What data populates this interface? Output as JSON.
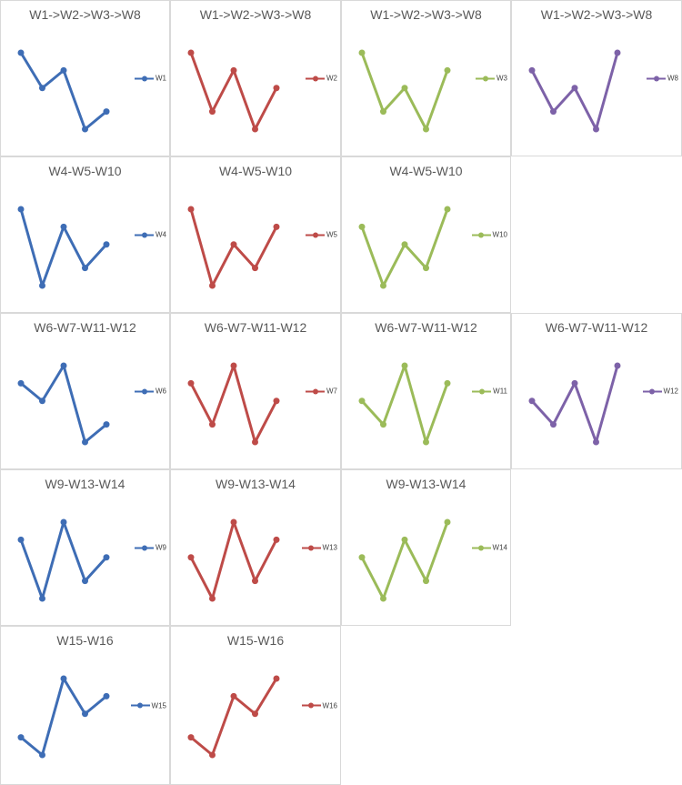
{
  "palette": {
    "blue": "#3e6db5",
    "red": "#be4b48",
    "green": "#9bbb59",
    "purple": "#7d62a8"
  },
  "style": {
    "title_color": "#595959",
    "legend_text_color": "#404040",
    "cell_border_color": "#d9d9d9",
    "background": "#ffffff"
  },
  "grid": {
    "columns": 4,
    "rows": 5
  },
  "chart_data": [
    {
      "type": "line",
      "row": 0,
      "col": 0,
      "title": "W1->W2->W3->W8",
      "legend_position": "right",
      "axes": "hidden",
      "markers": true,
      "x": [
        1,
        2,
        3,
        4,
        5
      ],
      "ylim": [
        0,
        10
      ],
      "series": [
        {
          "name": "W1",
          "color": "blue",
          "values": [
            8.5,
            5.5,
            7,
            2,
            3.5
          ]
        }
      ]
    },
    {
      "type": "line",
      "row": 0,
      "col": 1,
      "title": "W1->W2->W3->W8",
      "legend_position": "right",
      "axes": "hidden",
      "markers": true,
      "x": [
        1,
        2,
        3,
        4,
        5
      ],
      "ylim": [
        0,
        10
      ],
      "series": [
        {
          "name": "W2",
          "color": "red",
          "values": [
            8.5,
            3.5,
            7,
            2,
            5.5
          ]
        }
      ]
    },
    {
      "type": "line",
      "row": 0,
      "col": 2,
      "title": "W1->W2->W3->W8",
      "legend_position": "right",
      "axes": "hidden",
      "markers": true,
      "x": [
        1,
        2,
        3,
        4,
        5
      ],
      "ylim": [
        0,
        10
      ],
      "series": [
        {
          "name": "W3",
          "color": "green",
          "values": [
            8.5,
            3.5,
            5.5,
            2,
            7
          ]
        }
      ]
    },
    {
      "type": "line",
      "row": 0,
      "col": 3,
      "title": "W1->W2->W3->W8",
      "legend_position": "right",
      "axes": "hidden",
      "markers": true,
      "x": [
        1,
        2,
        3,
        4,
        5
      ],
      "ylim": [
        0,
        10
      ],
      "series": [
        {
          "name": "W8",
          "color": "purple",
          "values": [
            7,
            3.5,
            5.5,
            2,
            8.5
          ]
        }
      ]
    },
    {
      "type": "line",
      "row": 1,
      "col": 0,
      "title": "W4-W5-W10",
      "legend_position": "right",
      "axes": "hidden",
      "markers": true,
      "x": [
        1,
        2,
        3,
        4,
        5
      ],
      "ylim": [
        0,
        10
      ],
      "series": [
        {
          "name": "W4",
          "color": "blue",
          "values": [
            8.5,
            2,
            7,
            3.5,
            5.5
          ]
        }
      ]
    },
    {
      "type": "line",
      "row": 1,
      "col": 1,
      "title": "W4-W5-W10",
      "legend_position": "right",
      "axes": "hidden",
      "markers": true,
      "x": [
        1,
        2,
        3,
        4,
        5
      ],
      "ylim": [
        0,
        10
      ],
      "series": [
        {
          "name": "W5",
          "color": "red",
          "values": [
            8.5,
            2,
            5.5,
            3.5,
            7
          ]
        }
      ]
    },
    {
      "type": "line",
      "row": 1,
      "col": 2,
      "title": "W4-W5-W10",
      "legend_position": "right",
      "axes": "hidden",
      "markers": true,
      "x": [
        1,
        2,
        3,
        4,
        5
      ],
      "ylim": [
        0,
        10
      ],
      "series": [
        {
          "name": "W10",
          "color": "green",
          "values": [
            7,
            2,
            5.5,
            3.5,
            8.5
          ]
        }
      ]
    },
    {
      "type": "line",
      "row": 2,
      "col": 0,
      "title": "W6-W7-W11-W12",
      "legend_position": "right",
      "axes": "hidden",
      "markers": true,
      "x": [
        1,
        2,
        3,
        4,
        5
      ],
      "ylim": [
        0,
        10
      ],
      "series": [
        {
          "name": "W6",
          "color": "blue",
          "values": [
            7,
            5.5,
            8.5,
            2,
            3.5
          ]
        }
      ]
    },
    {
      "type": "line",
      "row": 2,
      "col": 1,
      "title": "W6-W7-W11-W12",
      "legend_position": "right",
      "axes": "hidden",
      "markers": true,
      "x": [
        1,
        2,
        3,
        4,
        5
      ],
      "ylim": [
        0,
        10
      ],
      "series": [
        {
          "name": "W7",
          "color": "red",
          "values": [
            7,
            3.5,
            8.5,
            2,
            5.5
          ]
        }
      ]
    },
    {
      "type": "line",
      "row": 2,
      "col": 2,
      "title": "W6-W7-W11-W12",
      "legend_position": "right",
      "axes": "hidden",
      "markers": true,
      "x": [
        1,
        2,
        3,
        4,
        5
      ],
      "ylim": [
        0,
        10
      ],
      "series": [
        {
          "name": "W11",
          "color": "green",
          "values": [
            5.5,
            3.5,
            8.5,
            2,
            7
          ]
        }
      ]
    },
    {
      "type": "line",
      "row": 2,
      "col": 3,
      "title": "W6-W7-W11-W12",
      "legend_position": "right",
      "axes": "hidden",
      "markers": true,
      "x": [
        1,
        2,
        3,
        4,
        5
      ],
      "ylim": [
        0,
        10
      ],
      "series": [
        {
          "name": "W12",
          "color": "purple",
          "values": [
            5.5,
            3.5,
            7,
            2,
            8.5
          ]
        }
      ]
    },
    {
      "type": "line",
      "row": 3,
      "col": 0,
      "title": "W9-W13-W14",
      "legend_position": "right",
      "axes": "hidden",
      "markers": true,
      "x": [
        1,
        2,
        3,
        4,
        5
      ],
      "ylim": [
        0,
        10
      ],
      "series": [
        {
          "name": "W9",
          "color": "blue",
          "values": [
            7,
            2,
            8.5,
            3.5,
            5.5
          ]
        }
      ]
    },
    {
      "type": "line",
      "row": 3,
      "col": 1,
      "title": "W9-W13-W14",
      "legend_position": "right",
      "axes": "hidden",
      "markers": true,
      "x": [
        1,
        2,
        3,
        4,
        5
      ],
      "ylim": [
        0,
        10
      ],
      "series": [
        {
          "name": "W13",
          "color": "red",
          "values": [
            5.5,
            2,
            8.5,
            3.5,
            7
          ]
        }
      ]
    },
    {
      "type": "line",
      "row": 3,
      "col": 2,
      "title": "W9-W13-W14",
      "legend_position": "right",
      "axes": "hidden",
      "markers": true,
      "x": [
        1,
        2,
        3,
        4,
        5
      ],
      "ylim": [
        0,
        10
      ],
      "series": [
        {
          "name": "W14",
          "color": "green",
          "values": [
            5.5,
            2,
            7,
            3.5,
            8.5
          ]
        }
      ]
    },
    {
      "type": "line",
      "row": 4,
      "col": 0,
      "title": "W15-W16",
      "legend_position": "right",
      "axes": "hidden",
      "markers": true,
      "x": [
        1,
        2,
        3,
        4,
        5
      ],
      "ylim": [
        0,
        10
      ],
      "series": [
        {
          "name": "W15",
          "color": "blue",
          "values": [
            3.5,
            2,
            8.5,
            5.5,
            7
          ]
        }
      ]
    },
    {
      "type": "line",
      "row": 4,
      "col": 1,
      "title": "W15-W16",
      "legend_position": "right",
      "axes": "hidden",
      "markers": true,
      "x": [
        1,
        2,
        3,
        4,
        5
      ],
      "ylim": [
        0,
        10
      ],
      "series": [
        {
          "name": "W16",
          "color": "red",
          "values": [
            3.5,
            2,
            7,
            5.5,
            8.5
          ]
        }
      ]
    }
  ]
}
